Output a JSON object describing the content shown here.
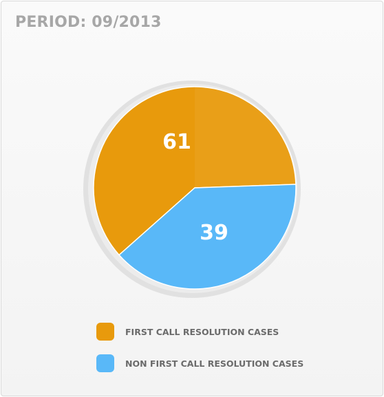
{
  "header": {
    "title": "PERIOD: 09/2013"
  },
  "colors": {
    "first_call": "#e89a0c",
    "non_first_call": "#59b8f8",
    "shadow": "#e1e1e1"
  },
  "chart_data": {
    "type": "pie",
    "title": "PERIOD: 09/2013",
    "slices": [
      {
        "label": "FIRST CALL RESOLUTION CASES",
        "value": 61,
        "color": "#e89a0c"
      },
      {
        "label": "NON FIRST CALL RESOLUTION CASES",
        "value": 39,
        "color": "#59b8f8"
      }
    ],
    "data_labels": [
      "61",
      "39"
    ],
    "legend_position": "bottom"
  }
}
